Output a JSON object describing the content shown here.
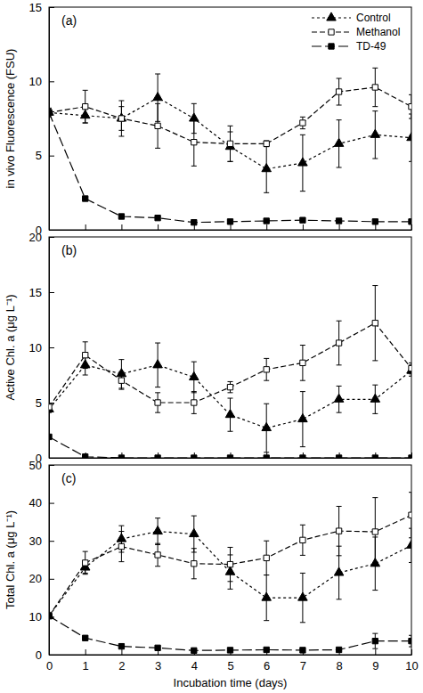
{
  "chart_data": [
    {
      "type": "line",
      "title": "(a)",
      "y_label": "in vivo Fluorescence (FSU)",
      "x": [
        0,
        1,
        2,
        3,
        4,
        5,
        6,
        7,
        8,
        9,
        10
      ],
      "xlim": [
        0,
        10
      ],
      "xticks": [
        0,
        1,
        2,
        3,
        4,
        5,
        6,
        7,
        8,
        9,
        10
      ],
      "ylim": [
        0,
        15
      ],
      "yticks": [
        0,
        5,
        10,
        15
      ],
      "tick_labels": "y",
      "legend": "upper right",
      "series": [
        {
          "name": "Control",
          "color": "#000000",
          "marker": "triangle",
          "line_style": "dotted",
          "values": [
            7.9,
            7.7,
            7.5,
            8.9,
            7.5,
            5.6,
            4.1,
            4.5,
            5.8,
            6.4,
            6.2
          ],
          "errors": [
            0.3,
            0.5,
            0.8,
            1.6,
            1.0,
            1.0,
            1.6,
            1.9,
            1.6,
            1.6,
            1.6
          ]
        },
        {
          "name": "Methanol",
          "color": "#000000",
          "marker": "square-open",
          "line_style": "dashed",
          "values": [
            7.9,
            8.3,
            7.5,
            7.0,
            5.9,
            5.8,
            5.8,
            7.2,
            9.3,
            9.6,
            8.3
          ],
          "errors": [
            0.2,
            1.1,
            1.2,
            1.5,
            1.6,
            1.2,
            0.2,
            0.4,
            0.9,
            1.3,
            0.8
          ]
        },
        {
          "name": "TD-49",
          "color": "#000000",
          "marker": "square",
          "line_style": "long-dashed",
          "values": [
            7.9,
            2.1,
            0.9,
            0.8,
            0.5,
            0.55,
            0.6,
            0.65,
            0.6,
            0.55,
            0.55
          ],
          "errors": [
            0.1,
            0.1,
            0.1,
            0.1,
            0.1,
            0.1,
            0.1,
            0.1,
            0.1,
            0.1,
            0.1
          ]
        }
      ]
    },
    {
      "type": "line",
      "title": "(b)",
      "y_label": "Active Chl. a (μg L⁻¹)",
      "x": [
        0,
        1,
        2,
        3,
        4,
        5,
        6,
        7,
        8,
        9,
        10
      ],
      "xlim": [
        0,
        10
      ],
      "xticks": [
        0,
        1,
        2,
        3,
        4,
        5,
        6,
        7,
        8,
        9,
        10
      ],
      "ylim": [
        0,
        20
      ],
      "yticks": [
        0,
        5,
        10,
        15,
        20
      ],
      "tick_labels": "y",
      "series": [
        {
          "color": "#000000",
          "marker": "triangle",
          "line_style": "dotted",
          "values": [
            4.4,
            8.4,
            7.6,
            8.4,
            7.3,
            3.9,
            2.7,
            3.5,
            5.3,
            5.3,
            7.9
          ],
          "errors": [
            0.3,
            0.9,
            1.3,
            2.0,
            1.4,
            1.5,
            2.2,
            2.5,
            1.2,
            1.3,
            0.5
          ]
        },
        {
          "color": "#000000",
          "marker": "square-open",
          "line_style": "dashed",
          "values": [
            4.6,
            9.3,
            7.0,
            5.0,
            5.0,
            6.4,
            8.0,
            8.6,
            10.4,
            12.2,
            8.1
          ],
          "errors": [
            0.2,
            1.2,
            0.8,
            0.9,
            1.0,
            0.5,
            1.0,
            1.6,
            2.0,
            3.4,
            0.5
          ]
        },
        {
          "color": "#000000",
          "marker": "square",
          "line_style": "long-dashed",
          "values": [
            1.9,
            0.1,
            0,
            0,
            0,
            0,
            0,
            0,
            0,
            0,
            0
          ],
          "errors": [
            0.1,
            0,
            0,
            0,
            0,
            0,
            0,
            0,
            0,
            0,
            0
          ]
        }
      ]
    },
    {
      "type": "line",
      "title": "(c)",
      "y_label": "Total Chl. a (μg L⁻¹)",
      "x_label": "Incubation time (days)",
      "x": [
        0,
        1,
        2,
        3,
        4,
        5,
        6,
        7,
        8,
        9,
        10
      ],
      "xlim": [
        0,
        10
      ],
      "xticks": [
        0,
        1,
        2,
        3,
        4,
        5,
        6,
        7,
        8,
        9,
        10
      ],
      "ylim": [
        0,
        50
      ],
      "yticks": [
        0,
        10,
        20,
        30,
        40,
        50
      ],
      "series": [
        {
          "color": "#000000",
          "marker": "triangle",
          "line_style": "dotted",
          "values": [
            10.2,
            23,
            30.5,
            32.5,
            31.8,
            21.8,
            15,
            15,
            21.6,
            24,
            28.8
          ],
          "errors": [
            0.5,
            1.5,
            3.5,
            3.5,
            4.8,
            4.5,
            6,
            6.5,
            7,
            7,
            4.5
          ]
        },
        {
          "color": "#000000",
          "marker": "square-open",
          "line_style": "dashed",
          "values": [
            10.2,
            24.2,
            28.5,
            26.3,
            24,
            23.8,
            25.5,
            30.2,
            32.6,
            32.4,
            36.8
          ],
          "errors": [
            0.5,
            3,
            4,
            3,
            4,
            4.5,
            4.5,
            4,
            6.5,
            9,
            6
          ]
        },
        {
          "color": "#000000",
          "marker": "square",
          "line_style": "long-dashed",
          "values": [
            10.2,
            4.4,
            2.2,
            1.8,
            1.1,
            1.2,
            1.3,
            1.2,
            1.3,
            3.6,
            3.6
          ],
          "errors": [
            0.3,
            0.5,
            0.3,
            0.3,
            0.2,
            0.2,
            0.2,
            0.2,
            0.2,
            2,
            1.5
          ]
        }
      ]
    }
  ]
}
